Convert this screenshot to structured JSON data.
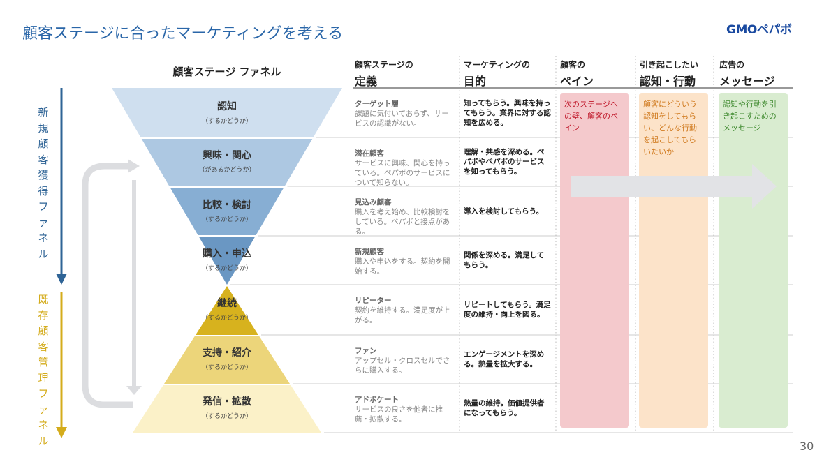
{
  "title": "顧客ステージに合ったマーケティングを考える",
  "logo": "GMOペパボ",
  "page_number": "30",
  "left_labels": {
    "acquisition": "新規顧客獲得ファネル",
    "retention": "既存顧客管理ファネル"
  },
  "funnel_header": "顧客ステージ ファネル",
  "columns": [
    {
      "line1": "顧客ステージの",
      "line2": "定義"
    },
    {
      "line1": "マーケティングの",
      "line2": "目的"
    },
    {
      "line1": "顧客の",
      "line2": "ペイン"
    },
    {
      "line1": "引き起こしたい",
      "line2": "認知・行動"
    },
    {
      "line1": "広告の",
      "line2": "メッセージ"
    }
  ],
  "stages": [
    {
      "name": "認知",
      "sub": "（するかどうか）",
      "def_title": "ターゲット層",
      "def": "課題に気付いておらず、サービスの認識がない。",
      "purpose": "知ってもらう。興味を持ってもらう。業界に対する認知を広める。"
    },
    {
      "name": "興味・関心",
      "sub": "（があるかどうか）",
      "def_title": "潜在顧客",
      "def": "サービスに興味、関心を持っている。ペパボのサービスについて知らない。",
      "purpose": "理解・共感を深める。ペパボやペパボのサービスを知ってもらう。"
    },
    {
      "name": "比較・検討",
      "sub": "（するかどうか）",
      "def_title": "見込み顧客",
      "def": "購入を考え始め、比較検討をしている。ペパボと接点がある。",
      "purpose": "導入を検討してもらう。"
    },
    {
      "name": "購入・申込",
      "sub": "（するかどうか）",
      "def_title": "新規顧客",
      "def": "購入や申込をする。契約を開始する。",
      "purpose": "関係を深める。満足してもらう。"
    },
    {
      "name": "継続",
      "sub": "（するかどうか）",
      "def_title": "リピーター",
      "def": "契約を維持する。満足度が上がる。",
      "purpose": "リピートしてもらう。満足度の維持・向上を図る。"
    },
    {
      "name": "支持・紹介",
      "sub": "（するかどうか）",
      "def_title": "ファン",
      "def": "アップセル・クロスセルでさらに購入する。",
      "purpose": "エンゲージメントを深める。熱量を拡大する。"
    },
    {
      "name": "発信・拡散",
      "sub": "（するかどうか）",
      "def_title": "アドボケート",
      "def": "サービスの良さを他者に推薦・拡散する。",
      "purpose": "熱量の維持。価値提供者になってもらう。"
    }
  ],
  "boxes": {
    "pain": "次のステージへの壁、顧客のペイン",
    "action": "顧客にどういう認知をしてもらい、どんな行動を起こしてもらいたいか",
    "message": "認知や行動を引き起こすためのメッセージ"
  },
  "colors": {
    "title": "#2a66a8",
    "acquisition": "#2f6496",
    "retention": "#d4ac1c",
    "funnel": [
      "#cfdfef",
      "#adc8e2",
      "#87aed3",
      "#6a97c3"
    ],
    "pyramid": [
      "#d7b21e",
      "#ecd57a",
      "#fbf1c8"
    ],
    "pain": "#f4c9cc",
    "action": "#fce3c9",
    "message": "#d9ecd0"
  }
}
